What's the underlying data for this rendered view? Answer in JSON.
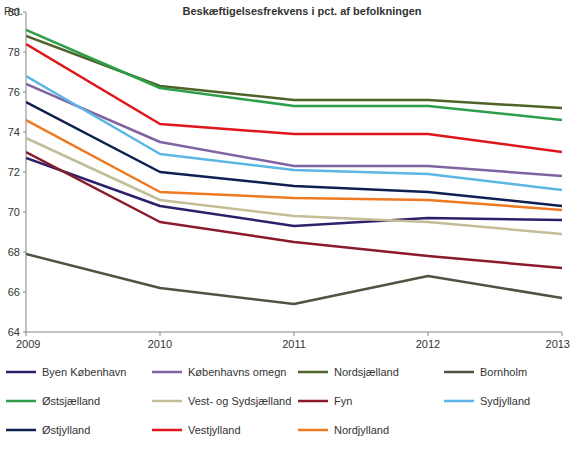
{
  "chart_data": {
    "type": "line",
    "title": "Beskæftigelsesfrekvens i pct. af befolkningen",
    "y_label": "Pct.",
    "x": [
      2009,
      2010,
      2011,
      2012,
      2013
    ],
    "xlim": [
      2009,
      2013
    ],
    "xticks": [
      2009,
      2010,
      2011,
      2012,
      2013
    ],
    "ylim": [
      64,
      80
    ],
    "yticks": [
      64,
      66,
      68,
      70,
      72,
      74,
      76,
      78,
      80
    ],
    "grid": false,
    "legend": "bottom",
    "series": [
      {
        "name": "Byen København",
        "color": "#2e1f6b",
        "values": [
          72.7,
          70.3,
          69.3,
          69.7,
          69.6
        ]
      },
      {
        "name": "Københavns omegn",
        "color": "#8064a2",
        "values": [
          76.4,
          73.5,
          72.3,
          72.3,
          71.8
        ]
      },
      {
        "name": "Nordsjælland",
        "color": "#4f6228",
        "values": [
          78.8,
          76.3,
          75.6,
          75.6,
          75.2
        ]
      },
      {
        "name": "Bornholm",
        "color": "#4d5440",
        "values": [
          67.9,
          66.2,
          65.4,
          66.8,
          65.7
        ]
      },
      {
        "name": "Østsjælland",
        "color": "#2e9e48",
        "values": [
          79.1,
          76.2,
          75.3,
          75.3,
          74.6
        ]
      },
      {
        "name": "Vest- og Sydsjælland",
        "color": "#c4bd97",
        "values": [
          73.7,
          70.6,
          69.8,
          69.5,
          68.9
        ]
      },
      {
        "name": "Fyn",
        "color": "#8b1a2b",
        "values": [
          73.0,
          69.5,
          68.5,
          67.8,
          67.2
        ]
      },
      {
        "name": "Sydjylland",
        "color": "#5bb5e5",
        "values": [
          76.8,
          72.9,
          72.1,
          71.9,
          71.1
        ]
      },
      {
        "name": "Østjylland",
        "color": "#0f2050",
        "values": [
          75.5,
          72.0,
          71.3,
          71.0,
          70.3
        ]
      },
      {
        "name": "Vestjylland",
        "color": "#e0161b",
        "values": [
          78.4,
          74.4,
          73.9,
          73.9,
          73.0
        ]
      },
      {
        "name": "Nordjylland",
        "color": "#f07820",
        "values": [
          74.6,
          71.0,
          70.7,
          70.6,
          70.1
        ]
      }
    ]
  }
}
